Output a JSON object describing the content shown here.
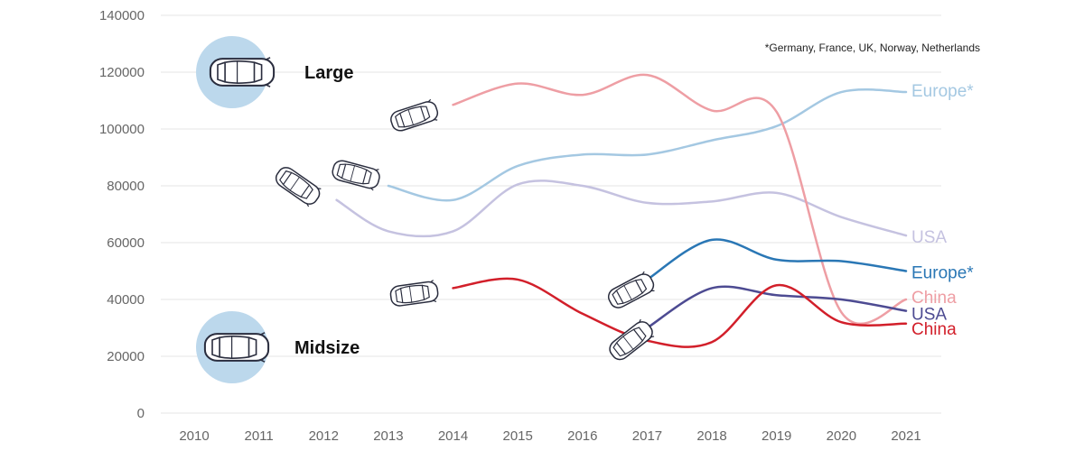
{
  "chart_data": {
    "type": "line",
    "x": [
      2010,
      2011,
      2012,
      2013,
      2014,
      2015,
      2016,
      2017,
      2018,
      2019,
      2020,
      2021
    ],
    "ylim": [
      0,
      140000
    ],
    "yticks": [
      0,
      20000,
      40000,
      60000,
      80000,
      100000,
      120000,
      140000
    ],
    "xticks": [
      "2010",
      "2011",
      "2012",
      "2013",
      "2014",
      "2015",
      "2016",
      "2017",
      "2018",
      "2019",
      "2020",
      "2021"
    ],
    "grid": true,
    "footnote": "*Germany, France, UK, Norway, Netherlands",
    "segments": [
      {
        "label": "Large",
        "icon": "car-top-icon",
        "color": "#bcd8ec"
      },
      {
        "label": "Midsize",
        "icon": "car-top-icon",
        "color": "#bcd8ec"
      }
    ],
    "series": [
      {
        "name": "Europe*",
        "segment": "Large",
        "color": "#a4c8e2",
        "x": [
          2013.0,
          2014.0,
          2015.0,
          2016.0,
          2017.0,
          2018.0,
          2019.0,
          2020.0,
          2021.0
        ],
        "values": [
          80000,
          75000,
          87000,
          91000,
          91000,
          96000,
          101000,
          113000,
          113000
        ]
      },
      {
        "name": "USA",
        "segment": "Large",
        "color": "#c5c2e0",
        "x": [
          2012.2,
          2013.0,
          2014.0,
          2015.0,
          2016.0,
          2017.0,
          2018.0,
          2019.0,
          2020.0,
          2021.0
        ],
        "values": [
          75000,
          64000,
          64000,
          80500,
          80000,
          74000,
          74500,
          77500,
          69000,
          62500
        ]
      },
      {
        "name": "China",
        "segment": "Large",
        "color": "#ee9ea4",
        "x": [
          2014.0,
          2015.0,
          2016.0,
          2017.0,
          2018.0,
          2019.0,
          2020.0,
          2021.0
        ],
        "values": [
          108500,
          116000,
          112000,
          119000,
          106500,
          106000,
          35500,
          40000
        ]
      },
      {
        "name": "Europe*",
        "segment": "Midsize",
        "color": "#2a77b5",
        "x": [
          2017.0,
          2018.0,
          2019.0,
          2020.0,
          2021.0
        ],
        "values": [
          47000,
          61000,
          54000,
          53500,
          50000
        ]
      },
      {
        "name": "USA",
        "segment": "Midsize",
        "color": "#4d4b92",
        "x": [
          2017.0,
          2018.0,
          2019.0,
          2020.0,
          2021.0
        ],
        "values": [
          30000,
          44000,
          41500,
          40000,
          36000
        ]
      },
      {
        "name": "China",
        "segment": "Midsize",
        "color": "#d21f2a",
        "x": [
          2014.0,
          2015.0,
          2016.0,
          2017.0,
          2018.0,
          2019.0,
          2020.0,
          2021.0
        ],
        "values": [
          44000,
          47000,
          35000,
          25500,
          25000,
          45000,
          32000,
          31500
        ]
      }
    ],
    "car_markers": [
      {
        "x": 2013.4,
        "y": 104500,
        "angle": -18,
        "icon": "car-top-icon"
      },
      {
        "x": 2011.6,
        "y": 80000,
        "angle": 35,
        "icon": "car-top-icon"
      },
      {
        "x": 2012.5,
        "y": 84000,
        "angle": 15,
        "icon": "car-top-icon"
      },
      {
        "x": 2013.4,
        "y": 42000,
        "angle": -8,
        "icon": "car-top-icon"
      },
      {
        "x": 2016.75,
        "y": 43000,
        "angle": -28,
        "icon": "car-top-icon"
      },
      {
        "x": 2016.75,
        "y": 25500,
        "angle": -38,
        "icon": "car-top-icon"
      }
    ]
  }
}
